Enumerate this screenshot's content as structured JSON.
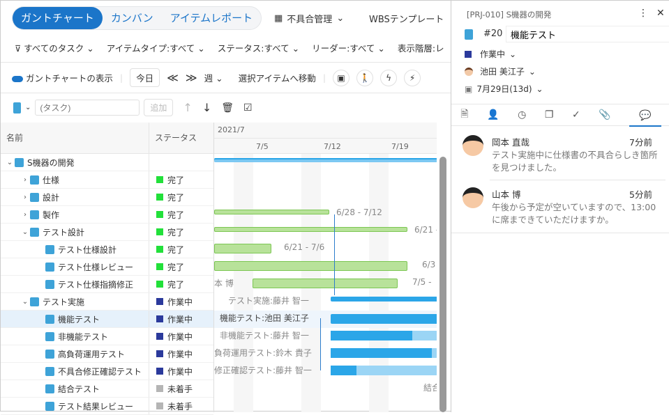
{
  "view_tabs": [
    "ガントチャート",
    "カンバン",
    "アイテムレポート"
  ],
  "top_menu": {
    "bug": "不具合管理",
    "wbs": "WBSテンプレート"
  },
  "filters": [
    "すべてのタスク",
    "アイテムタイプ:すべて",
    "ステータス:すべて",
    "リーダー:すべて",
    "表示階層:レ"
  ],
  "toolbar": {
    "gantt_toggle": "ガントチャートの表示",
    "today": "今日",
    "prev": "≪",
    "next": "≫",
    "scale": "週",
    "goto": "選択アイテムへ移動"
  },
  "add": {
    "placeholder": "(タスク)",
    "add_label": "追加"
  },
  "tree": {
    "col_name": "名前",
    "col_status": "ステータス",
    "rows": [
      {
        "name": "S機器の開発",
        "status": "",
        "level": 0,
        "exp": "⌄",
        "type": "project"
      },
      {
        "name": "仕様",
        "status": "完了",
        "level": 1,
        "exp": "›",
        "type": "folder-done"
      },
      {
        "name": "設計",
        "status": "完了",
        "level": 1,
        "exp": "›",
        "type": "folder-done"
      },
      {
        "name": "製作",
        "status": "完了",
        "level": 1,
        "exp": "›",
        "type": "folder-done"
      },
      {
        "name": "テスト設計",
        "status": "完了",
        "level": 1,
        "exp": "⌄",
        "type": "folder-done"
      },
      {
        "name": "テスト仕様設計",
        "status": "完了",
        "level": 2,
        "exp": "",
        "type": "task-done"
      },
      {
        "name": "テスト仕様レビュー",
        "status": "完了",
        "level": 2,
        "exp": "",
        "type": "task-done"
      },
      {
        "name": "テスト仕様指摘修正",
        "status": "完了",
        "level": 2,
        "exp": "",
        "type": "task-done"
      },
      {
        "name": "テスト実施",
        "status": "作業中",
        "level": 1,
        "exp": "⌄",
        "type": "folder"
      },
      {
        "name": "機能テスト",
        "status": "作業中",
        "level": 2,
        "exp": "",
        "type": "task"
      },
      {
        "name": "非機能テスト",
        "status": "作業中",
        "level": 2,
        "exp": "",
        "type": "task"
      },
      {
        "name": "高負荷運用テスト",
        "status": "作業中",
        "level": 2,
        "exp": "",
        "type": "task"
      },
      {
        "name": "不具合修正確認テスト",
        "status": "作業中",
        "level": 2,
        "exp": "",
        "type": "task"
      },
      {
        "name": "結合テスト",
        "status": "未着手",
        "level": 2,
        "exp": "",
        "type": "task"
      },
      {
        "name": "テスト結果レビュー",
        "status": "未着手",
        "level": 2,
        "exp": "",
        "type": "task"
      }
    ]
  },
  "status_colors": {
    "完了": "#22e03a",
    "作業中": "#2b3a9c",
    "未着手": "#b5b5b5"
  },
  "gantt": {
    "month": "2021/7",
    "weeks": [
      "7/5",
      "7/12",
      "7/19"
    ],
    "labels": {
      "r3": "6/28 - 7/12",
      "r4": "6/21 -",
      "r5": "6/21 - 7/6",
      "r6": "6/3",
      "r7l": "本 博",
      "r7": "7/5 -",
      "r8": "テスト実施:藤井 智一",
      "r9": "機能テスト:池田 美江子",
      "r10": "非機能テスト:藤井 智一",
      "r11": "負荷運用テスト:鈴木 貴子",
      "r12": "修正確認テスト:藤井 智一",
      "r13": "結合"
    }
  },
  "panel": {
    "breadcrumb": "[PRJ-010] S機器の開発",
    "id": "#20",
    "title": "機能テスト",
    "status": "作業中",
    "assignee": "池田 美江子",
    "due": "7月29日(13d)",
    "comments": [
      {
        "author": "岡本 直哉",
        "ago": "7分前",
        "text": "テスト実施中に仕様書の不具合らしき箇所を見つけました。"
      },
      {
        "author": "山本 博",
        "ago": "5分前",
        "text": "午後から予定が空いていますので、13:00に席まできていただけますか。"
      }
    ]
  },
  "accent": "#1b75c9"
}
